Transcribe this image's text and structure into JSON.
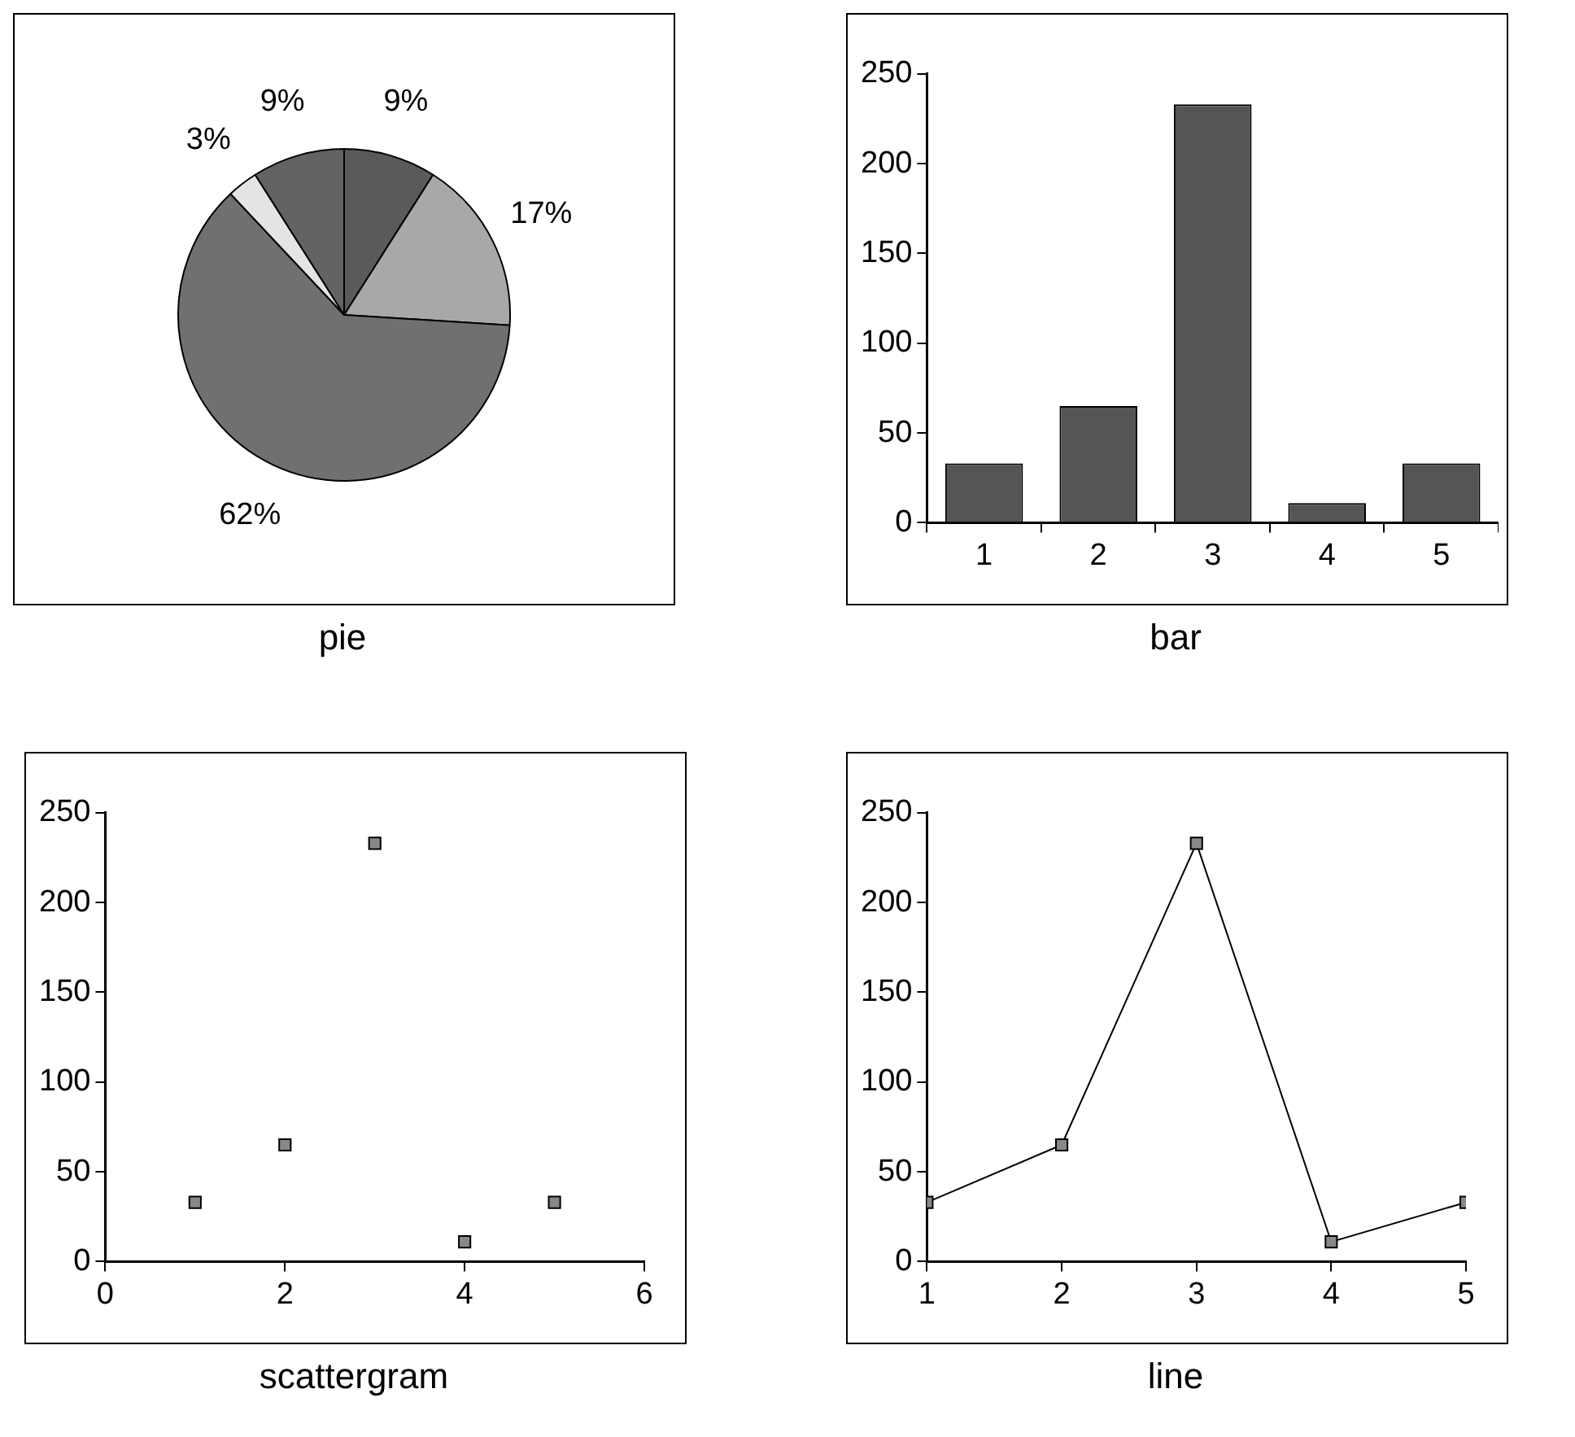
{
  "chart_data": [
    {
      "type": "pie",
      "title": "pie",
      "categories": [
        null,
        null,
        null,
        null,
        null
      ],
      "values": [
        9,
        17,
        62,
        3,
        9
      ],
      "colors": [
        "#5a5a5a",
        "#a8a8a8",
        "#707070",
        "#e4e4e4",
        "#636363"
      ],
      "value_labels": [
        "9%",
        "17%",
        "62%",
        "3%",
        "9%"
      ]
    },
    {
      "type": "bar",
      "title": "bar",
      "categories": [
        "1",
        "2",
        "3",
        "4",
        "5"
      ],
      "values": [
        33,
        65,
        233,
        11,
        33
      ],
      "color": "#555555",
      "ylim": [
        0,
        250
      ],
      "yticks": [
        0,
        50,
        100,
        150,
        200,
        250
      ]
    },
    {
      "type": "scatter",
      "title": "scattergram",
      "x": [
        1,
        2,
        3,
        4,
        5
      ],
      "values": [
        33,
        65,
        233,
        11,
        33
      ],
      "color": "#888888",
      "marker": "square",
      "xlim": [
        0,
        6
      ],
      "xticks": [
        0,
        2,
        4,
        6
      ],
      "ylim": [
        0,
        250
      ],
      "yticks": [
        0,
        50,
        100,
        150,
        200,
        250
      ]
    },
    {
      "type": "line",
      "title": "line",
      "x": [
        1,
        2,
        3,
        4,
        5
      ],
      "values": [
        33,
        65,
        233,
        11,
        33
      ],
      "color": "#888888",
      "marker": "square",
      "xlim": [
        1,
        5
      ],
      "xticks": [
        1,
        2,
        3,
        4,
        5
      ],
      "ylim": [
        0,
        250
      ],
      "yticks": [
        0,
        50,
        100,
        150,
        200,
        250
      ]
    }
  ]
}
